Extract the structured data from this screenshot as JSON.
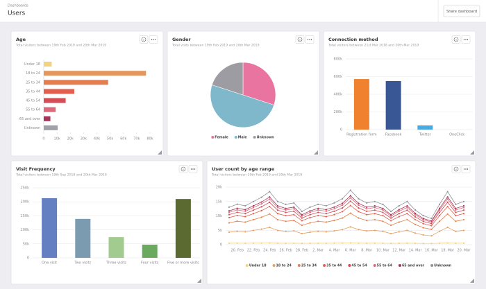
{
  "header": {
    "breadcrumb": "Dashboards",
    "title": "Users",
    "button": "Share dashboard"
  },
  "chart_data": [
    {
      "type": "hbar",
      "title": "Age",
      "subtitle": "Total visitors between 19th Feb 2019 and 20th Mar 2019",
      "categories": [
        "Under 18",
        "18 to 24",
        "25 to 34",
        "35 to 44",
        "45 to 54",
        "55 to 64",
        "65 and over",
        "Unknown"
      ],
      "values": [
        6000,
        77000,
        48500,
        23000,
        16500,
        9000,
        5000,
        10500
      ],
      "colors": [
        "#f2d27e",
        "#e3975f",
        "#e57d4f",
        "#e2604f",
        "#d44c55",
        "#dd6a7a",
        "#a5345a",
        "#a1a1a9"
      ],
      "xlim": [
        0,
        80000
      ],
      "xticks": [
        0,
        {
          "value": 10000,
          "label": "10k"
        },
        {
          "value": 20000,
          "label": "20k"
        },
        {
          "value": 30000,
          "label": "30k"
        },
        {
          "value": 40000,
          "label": "40k"
        },
        {
          "value": 50000,
          "label": "50k"
        },
        {
          "value": 60000,
          "label": "60k"
        },
        {
          "value": 70000,
          "label": "70k"
        },
        {
          "value": 80000,
          "label": "80k"
        }
      ],
      "grid": false
    },
    {
      "type": "pie",
      "title": "Gender",
      "subtitle": "Total visits between 19th Feb 2019 and 20th Mar 2019",
      "categories": [
        "Female",
        "Male",
        "Unknown"
      ],
      "values": [
        30,
        50,
        20
      ],
      "colors": [
        "#e8749f",
        "#7fb8cb",
        "#9c9ca2"
      ]
    },
    {
      "type": "bar",
      "title": "Connection method",
      "subtitle": "Total visitors between 21st Mar 2018 and 20th Mar 2019",
      "categories": [
        "Registration form",
        "Facebook",
        "Twitter",
        "OneClick"
      ],
      "values": [
        572000,
        549000,
        47000,
        0
      ],
      "colors": [
        "#f0812f",
        "#3a5795",
        "#4aa9e2",
        "#999999"
      ],
      "ylim": [
        0,
        800000
      ],
      "yticks": [
        0,
        {
          "value": 200000,
          "label": "200k"
        },
        {
          "value": 400000,
          "label": "400k"
        },
        {
          "value": 600000,
          "label": "600k"
        },
        {
          "value": 800000,
          "label": "800k"
        }
      ],
      "grid": true
    },
    {
      "type": "bar",
      "title": "Visit Frequency",
      "subtitle": "Total visitors between 19th Sep 2018 and 20th Mar 2019",
      "categories": [
        "One visit",
        "Two visits",
        "Three visits",
        "Four visits",
        "Five or more visits"
      ],
      "values": [
        213000,
        139000,
        74000,
        47000,
        210000
      ],
      "colors": [
        "#6480c2",
        "#7b9cb0",
        "#a2cb8f",
        "#6aaa5f",
        "#5b6a30"
      ],
      "ylim": [
        0,
        250000
      ],
      "yticks": [
        0,
        {
          "value": 50000,
          "label": "50k"
        },
        {
          "value": 100000,
          "label": "100k"
        },
        {
          "value": 150000,
          "label": "150k"
        },
        {
          "value": 200000,
          "label": "200k"
        },
        {
          "value": 250000,
          "label": "250k"
        }
      ],
      "grid": true
    },
    {
      "type": "line",
      "title": "User count by age range",
      "subtitle": "Total visitors between 19th Feb 2019 and 20th Mar 2019",
      "stacked": true,
      "grid": true,
      "categories": [
        null,
        "20. Feb",
        null,
        "22. Feb",
        null,
        "24. Feb",
        null,
        "26. Feb",
        null,
        "28. Feb",
        null,
        "2. Mar",
        null,
        "4. Mar",
        null,
        "6. Mar",
        null,
        "8. Mar",
        null,
        "10. Mar",
        null,
        "12. Mar",
        null,
        "14. Mar",
        null,
        "16. Mar",
        null,
        "18. Mar",
        null,
        "20. Mar"
      ],
      "ylim": [
        0,
        20000
      ],
      "yticks": [
        0,
        {
          "value": 5000,
          "label": "5k"
        },
        {
          "value": 10000,
          "label": "10k"
        },
        {
          "value": 15000,
          "label": "15k"
        },
        {
          "value": 20000,
          "label": "20k"
        }
      ],
      "series": [
        {
          "name": "Under 18",
          "color": "#f2d27e",
          "values": [
            500,
            520,
            480,
            510,
            530,
            560,
            500,
            490,
            500,
            450,
            480,
            500,
            490,
            510,
            530,
            570,
            520,
            500,
            510,
            490,
            450,
            480,
            520,
            470,
            430,
            420,
            490,
            560,
            490,
            510
          ]
        },
        {
          "name": "18 to 24",
          "color": "#e8a060",
          "values": [
            3840,
            4130,
            3980,
            4430,
            4870,
            5460,
            4430,
            4130,
            4280,
            3390,
            3840,
            4130,
            3980,
            4280,
            4720,
            5610,
            4720,
            4280,
            4430,
            4130,
            3390,
            3980,
            4430,
            3540,
            2950,
            2660,
            4130,
            5460,
            4130,
            4430
          ]
        },
        {
          "name": "25 to 34",
          "color": "#e5804f",
          "values": [
            3250,
            3500,
            3380,
            3750,
            4130,
            4630,
            3750,
            3500,
            3630,
            2880,
            3250,
            3500,
            3380,
            3630,
            4000,
            4750,
            4000,
            3630,
            3750,
            3500,
            2880,
            3380,
            3750,
            3000,
            2500,
            2250,
            3500,
            4630,
            3500,
            3750
          ]
        },
        {
          "name": "35 to 44",
          "color": "#e2604f",
          "values": [
            1820,
            1960,
            1890,
            2100,
            2310,
            2590,
            2100,
            1960,
            2030,
            1610,
            1820,
            1960,
            1890,
            2030,
            2240,
            2660,
            2240,
            2030,
            2100,
            1960,
            1610,
            1890,
            2100,
            1680,
            1400,
            1260,
            1960,
            2590,
            1960,
            2100
          ]
        },
        {
          "name": "45 to 54",
          "color": "#d44c55",
          "values": [
            1040,
            1120,
            1080,
            1200,
            1320,
            1480,
            1200,
            1120,
            1160,
            920,
            1040,
            1120,
            1080,
            1160,
            1280,
            1520,
            1280,
            1160,
            1200,
            1120,
            920,
            1080,
            1200,
            960,
            800,
            720,
            1120,
            1480,
            1120,
            1200
          ]
        },
        {
          "name": "55 to 64",
          "color": "#dd6a7a",
          "values": [
            780,
            840,
            810,
            900,
            990,
            1110,
            900,
            840,
            870,
            690,
            780,
            840,
            810,
            870,
            960,
            1140,
            960,
            870,
            900,
            840,
            690,
            810,
            900,
            720,
            600,
            540,
            840,
            1110,
            840,
            900
          ]
        },
        {
          "name": "65 and over",
          "color": "#a5345a",
          "values": [
            520,
            560,
            540,
            600,
            660,
            740,
            600,
            560,
            580,
            460,
            520,
            560,
            540,
            580,
            640,
            760,
            640,
            580,
            600,
            560,
            460,
            540,
            600,
            480,
            400,
            360,
            560,
            740,
            560,
            600
          ]
        },
        {
          "name": "Unknown",
          "color": "#909098",
          "values": [
            1300,
            1400,
            1350,
            1500,
            1650,
            1850,
            1500,
            1400,
            1450,
            1150,
            1300,
            1400,
            1350,
            1450,
            1600,
            1900,
            1600,
            1450,
            1500,
            1400,
            1150,
            1350,
            1500,
            1200,
            1000,
            900,
            1400,
            1850,
            1400,
            1500
          ]
        }
      ]
    }
  ]
}
